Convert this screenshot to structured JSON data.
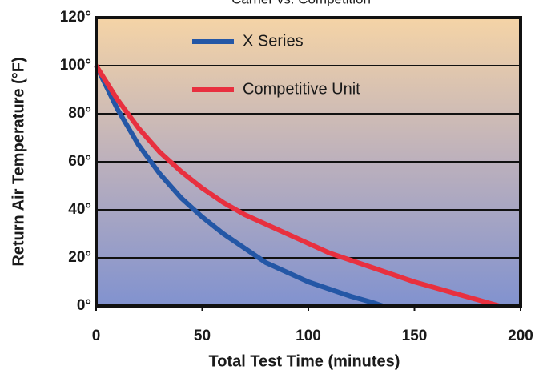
{
  "chart_data": {
    "type": "line",
    "title": "Carrier vs. Competition",
    "xlabel": "Total Test Time (minutes)",
    "ylabel": "Return Air Temperature (°F)",
    "xlim": [
      0,
      200
    ],
    "xticks": [
      0,
      50,
      100,
      150,
      200
    ],
    "ylim": [
      0,
      120
    ],
    "yticks": [
      {
        "value": 0,
        "label": "0°"
      },
      {
        "value": 20,
        "label": "20°"
      },
      {
        "value": 40,
        "label": "40°"
      },
      {
        "value": 60,
        "label": "60°"
      },
      {
        "value": 80,
        "label": "80°"
      },
      {
        "value": 100,
        "label": "100°"
      },
      {
        "value": 120,
        "label": "120°"
      }
    ],
    "grid": true,
    "series": [
      {
        "name": "X Series",
        "color": "#2457a6",
        "x": [
          0,
          10,
          20,
          30,
          40,
          50,
          60,
          70,
          80,
          90,
          100,
          110,
          120,
          130,
          135
        ],
        "values": [
          100,
          82,
          67,
          55,
          45,
          37,
          30,
          24,
          18,
          14,
          10,
          7,
          4,
          1.5,
          0
        ]
      },
      {
        "name": "Competitive Unit",
        "color": "#e8303f",
        "x": [
          0,
          10,
          20,
          30,
          40,
          50,
          60,
          70,
          80,
          90,
          100,
          110,
          120,
          130,
          140,
          150,
          160,
          170,
          180,
          190
        ],
        "values": [
          100,
          86,
          74,
          64,
          56,
          49,
          43,
          38,
          34,
          30,
          26,
          22,
          19,
          16,
          13,
          10,
          7.5,
          5,
          2.5,
          0
        ]
      }
    ]
  }
}
